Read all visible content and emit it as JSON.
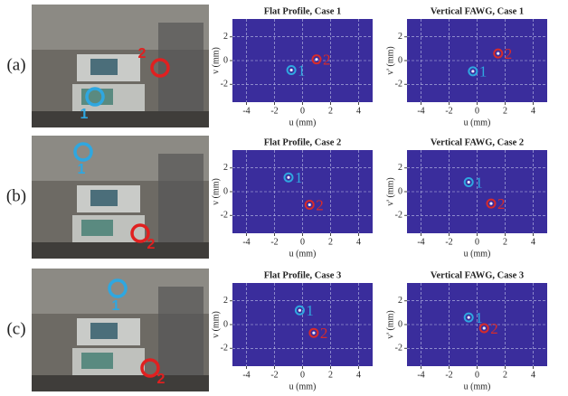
{
  "panels": [
    {
      "label": "(a)",
      "photo_markers": [
        "1",
        "2"
      ]
    },
    {
      "label": "(b)",
      "photo_markers": [
        "1",
        "2"
      ]
    },
    {
      "label": "(c)",
      "photo_markers": [
        "1",
        "2"
      ]
    }
  ],
  "chart_data": [
    {
      "type": "scatter",
      "title": "Flat Profile, Case 1",
      "xlabel": "u (mm)",
      "ylabel": "v (mm)",
      "xlim": [
        -5,
        5
      ],
      "ylim": [
        -3.5,
        3.5
      ],
      "xticks": [
        -4,
        -2,
        0,
        2,
        4
      ],
      "yticks": [
        -2,
        0,
        2
      ],
      "grid": true,
      "plot_color": "#3a2d9c",
      "series": [
        {
          "name": "1",
          "color": "#2fa7e0",
          "x": [
            -0.8
          ],
          "values": [
            -0.8
          ]
        },
        {
          "name": "2",
          "color": "#d62b2b",
          "x": [
            1.0
          ],
          "values": [
            0.1
          ]
        }
      ]
    },
    {
      "type": "scatter",
      "title": "Vertical FAWG, Case 1",
      "xlabel": "u (mm)",
      "ylabel": "v' (mm)",
      "xlim": [
        -5,
        5
      ],
      "ylim": [
        -3.5,
        3.5
      ],
      "xticks": [
        -4,
        -2,
        0,
        2,
        4
      ],
      "yticks": [
        -2,
        0,
        2
      ],
      "grid": true,
      "plot_color": "#3a2d9c",
      "series": [
        {
          "name": "1",
          "color": "#2fa7e0",
          "x": [
            -0.3
          ],
          "values": [
            -0.9
          ]
        },
        {
          "name": "2",
          "color": "#d62b2b",
          "x": [
            1.5
          ],
          "values": [
            0.6
          ]
        }
      ]
    },
    {
      "type": "scatter",
      "title": "Flat Profile, Case 2",
      "xlabel": "u (mm)",
      "ylabel": "v (mm)",
      "xlim": [
        -5,
        5
      ],
      "ylim": [
        -3.5,
        3.5
      ],
      "xticks": [
        -4,
        -2,
        0,
        2,
        4
      ],
      "yticks": [
        -2,
        0,
        2
      ],
      "grid": true,
      "plot_color": "#3a2d9c",
      "series": [
        {
          "name": "1",
          "color": "#2fa7e0",
          "x": [
            -1.0
          ],
          "values": [
            1.2
          ]
        },
        {
          "name": "2",
          "color": "#d62b2b",
          "x": [
            0.5
          ],
          "values": [
            -1.1
          ]
        }
      ]
    },
    {
      "type": "scatter",
      "title": "Vertical FAWG, Case 2",
      "xlabel": "u (mm)",
      "ylabel": "v' (mm)",
      "xlim": [
        -5,
        5
      ],
      "ylim": [
        -3.5,
        3.5
      ],
      "xticks": [
        -4,
        -2,
        0,
        2,
        4
      ],
      "yticks": [
        -2,
        0,
        2
      ],
      "grid": true,
      "plot_color": "#3a2d9c",
      "series": [
        {
          "name": "1",
          "color": "#2fa7e0",
          "x": [
            -0.6
          ],
          "values": [
            0.8
          ]
        },
        {
          "name": "2",
          "color": "#d62b2b",
          "x": [
            1.0
          ],
          "values": [
            -1.0
          ]
        }
      ]
    },
    {
      "type": "scatter",
      "title": "Flat Profile, Case 3",
      "xlabel": "u (mm)",
      "ylabel": "v (mm)",
      "xlim": [
        -5,
        5
      ],
      "ylim": [
        -3.5,
        3.5
      ],
      "xticks": [
        -4,
        -2,
        0,
        2,
        4
      ],
      "yticks": [
        -2,
        0,
        2
      ],
      "grid": true,
      "plot_color": "#3a2d9c",
      "series": [
        {
          "name": "1",
          "color": "#2fa7e0",
          "x": [
            -0.2
          ],
          "values": [
            1.2
          ]
        },
        {
          "name": "2",
          "color": "#d62b2b",
          "x": [
            0.8
          ],
          "values": [
            -0.7
          ]
        }
      ]
    },
    {
      "type": "scatter",
      "title": "Vertical FAWG, Case 3",
      "xlabel": "u (mm)",
      "ylabel": "v' (mm)",
      "xlim": [
        -5,
        5
      ],
      "ylim": [
        -3.5,
        3.5
      ],
      "xticks": [
        -4,
        -2,
        0,
        2,
        4
      ],
      "yticks": [
        -2,
        0,
        2
      ],
      "grid": true,
      "plot_color": "#3a2d9c",
      "series": [
        {
          "name": "1",
          "color": "#2fa7e0",
          "x": [
            -0.6
          ],
          "values": [
            0.6
          ]
        },
        {
          "name": "2",
          "color": "#d62b2b",
          "x": [
            0.5
          ],
          "values": [
            -0.3
          ]
        }
      ]
    }
  ]
}
